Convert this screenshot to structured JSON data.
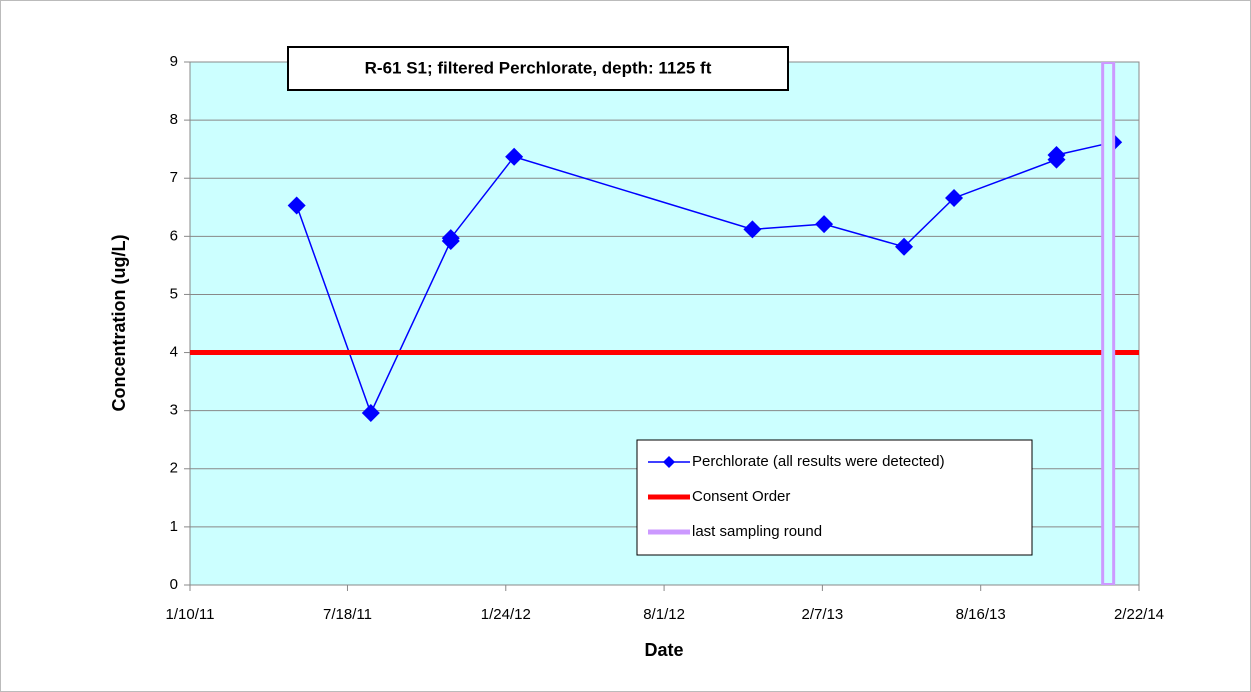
{
  "chart_data": {
    "type": "line",
    "title": "R-61 S1;  filtered Perchlorate, depth: 1125 ft",
    "x_label": "Date",
    "y_label": "Concentration (ug/L)",
    "xlim": [
      "1/10/11",
      "2/22/14"
    ],
    "xticks": [
      "1/10/11",
      "7/18/11",
      "1/24/12",
      "8/1/12",
      "2/7/13",
      "8/16/13",
      "2/22/14"
    ],
    "ylim": [
      0,
      9
    ],
    "yticks": [
      0,
      1,
      2,
      3,
      4,
      5,
      6,
      7,
      8,
      9
    ],
    "grid": true,
    "background": "#ccffff",
    "series": [
      {
        "name": "Perchlorate (all results were detected)",
        "color": "#0000ff",
        "marker": "diamond",
        "x": [
          "5/18/11",
          "8/15/11",
          "11/19/11",
          "11/19/11",
          "2/3/12",
          "11/15/12",
          "2/9/13",
          "5/16/13",
          "7/15/13",
          "11/15/13",
          "11/15/13",
          "1/22/14"
        ],
        "values": [
          6.53,
          2.96,
          5.92,
          5.97,
          7.37,
          6.12,
          6.21,
          5.82,
          6.66,
          7.32,
          7.4,
          7.62
        ]
      },
      {
        "name": "Consent Order",
        "color": "#ff0000",
        "x": [
          "1/10/11",
          "2/22/14"
        ],
        "values": [
          4,
          4
        ]
      },
      {
        "name": "last sampling round",
        "color": "#cc99ff",
        "x": [
          "1/16/14",
          "1/16/14"
        ],
        "values": [
          0,
          9
        ]
      }
    ]
  }
}
